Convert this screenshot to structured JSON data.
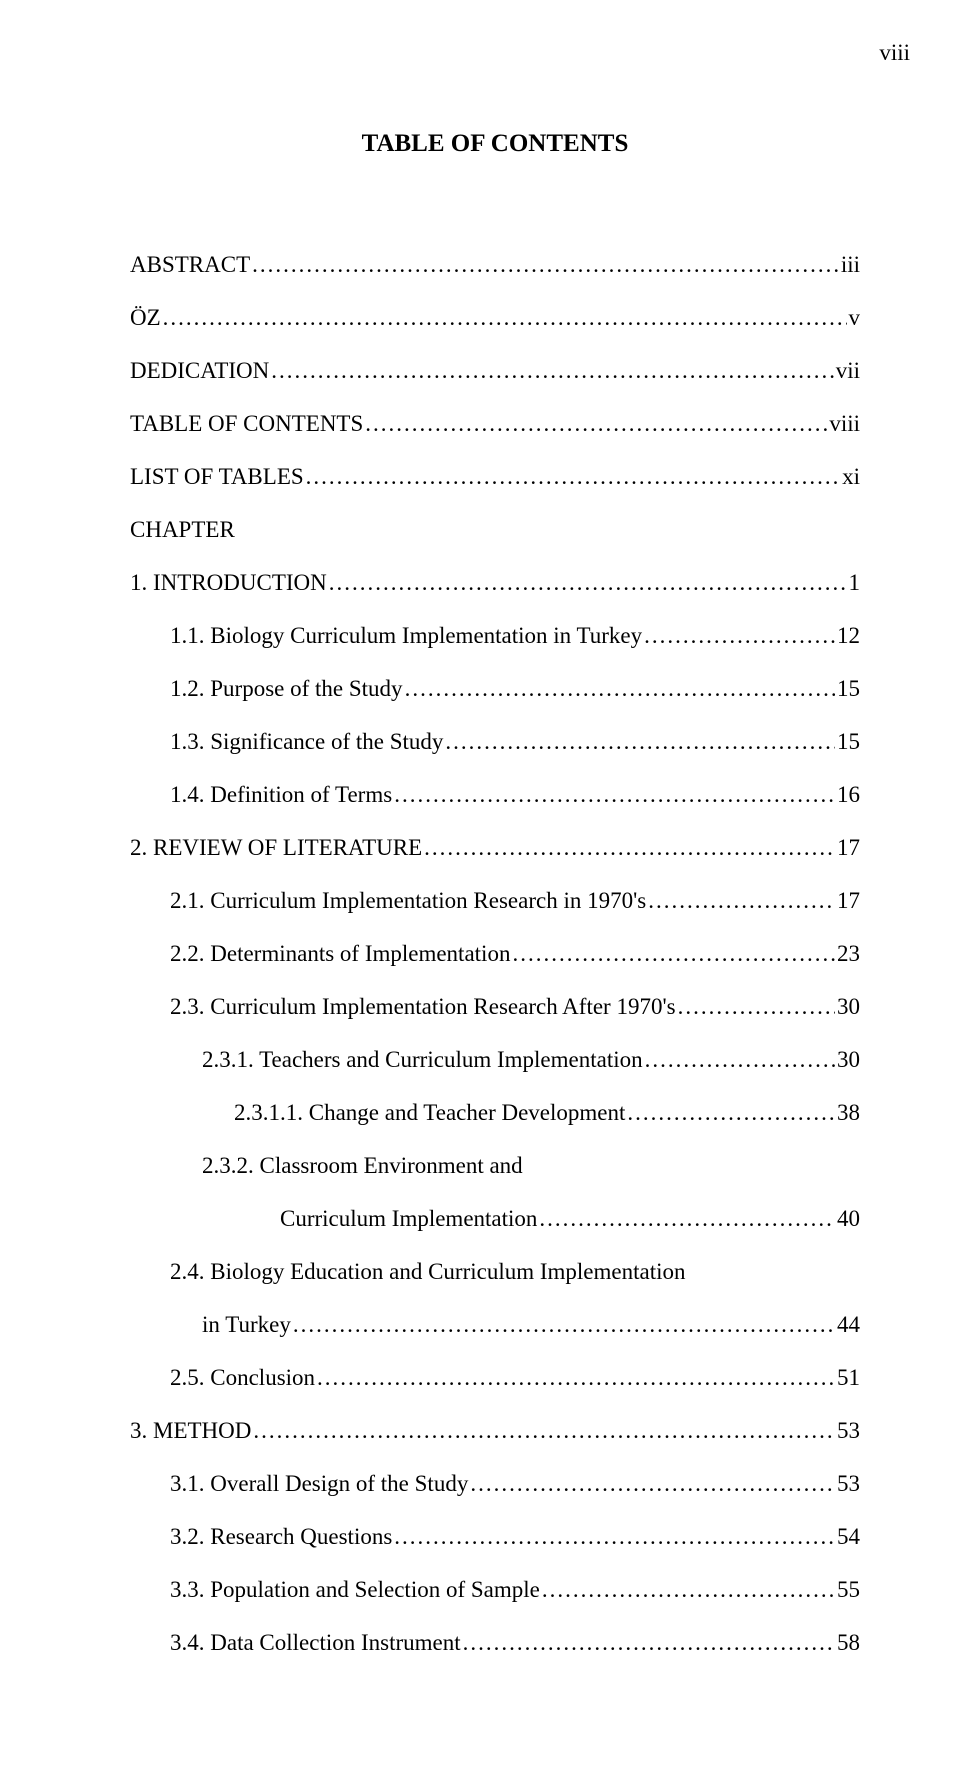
{
  "page_number": "viii",
  "title": "TABLE OF CONTENTS",
  "entries": [
    {
      "label": "ABSTRACT",
      "page": "iii",
      "indent": 0
    },
    {
      "label": "ÖZ",
      "page": "v",
      "indent": 0
    },
    {
      "label": "DEDICATION",
      "page": "vii",
      "indent": 0
    },
    {
      "label": "TABLE OF CONTENTS",
      "page": "viii",
      "indent": 0
    },
    {
      "label": "LIST OF TABLES",
      "page": "xi",
      "indent": 0
    },
    {
      "label": "CHAPTER",
      "page": "",
      "indent": 0,
      "no_leader": true
    },
    {
      "label": "1.  INTRODUCTION",
      "page": "1",
      "indent": 0
    },
    {
      "label": "1.1. Biology Curriculum Implementation in Turkey",
      "page": "12",
      "indent": 1
    },
    {
      "label": "1.2. Purpose of the Study",
      "page": "15",
      "indent": 1
    },
    {
      "label": "1.3. Significance of the Study",
      "page": "15",
      "indent": 1
    },
    {
      "label": "1.4. Definition of Terms",
      "page": "16",
      "indent": 1
    },
    {
      "label": "2.  REVIEW OF LITERATURE",
      "page": "17",
      "indent": 0
    },
    {
      "label": "2.1. Curriculum Implementation Research in 1970's",
      "page": "17",
      "indent": 1
    },
    {
      "label": "2.2. Determinants of Implementation",
      "page": "23",
      "indent": 1
    },
    {
      "label": "2.3. Curriculum Implementation Research After 1970's",
      "page": "30",
      "indent": 1
    },
    {
      "label": "2.3.1. Teachers and Curriculum Implementation",
      "page": "30",
      "indent": 2
    },
    {
      "label": "2.3.1.1. Change and Teacher Development",
      "page": "38",
      "indent": 3
    },
    {
      "label": "2.3.2. Classroom Environment and",
      "page": "",
      "indent": 2,
      "no_leader": true
    },
    {
      "label": "Curriculum Implementation",
      "page": "40",
      "indent": 4
    },
    {
      "label": "2.4. Biology Education and Curriculum Implementation",
      "page": "",
      "indent": 1,
      "no_leader": true
    },
    {
      "label": "in Turkey",
      "page": "44",
      "indent": 2
    },
    {
      "label": "2.5. Conclusion",
      "page": "51",
      "indent": 1
    },
    {
      "label": "3.  METHOD",
      "page": "53",
      "indent": 0
    },
    {
      "label": "3.1. Overall Design of the Study",
      "page": "53",
      "indent": 1
    },
    {
      "label": "3.2. Research Questions",
      "page": "54",
      "indent": 1
    },
    {
      "label": "3.3. Population and Selection of Sample",
      "page": "55",
      "indent": 1
    },
    {
      "label": "3.4. Data Collection Instrument",
      "page": "58",
      "indent": 1
    }
  ]
}
